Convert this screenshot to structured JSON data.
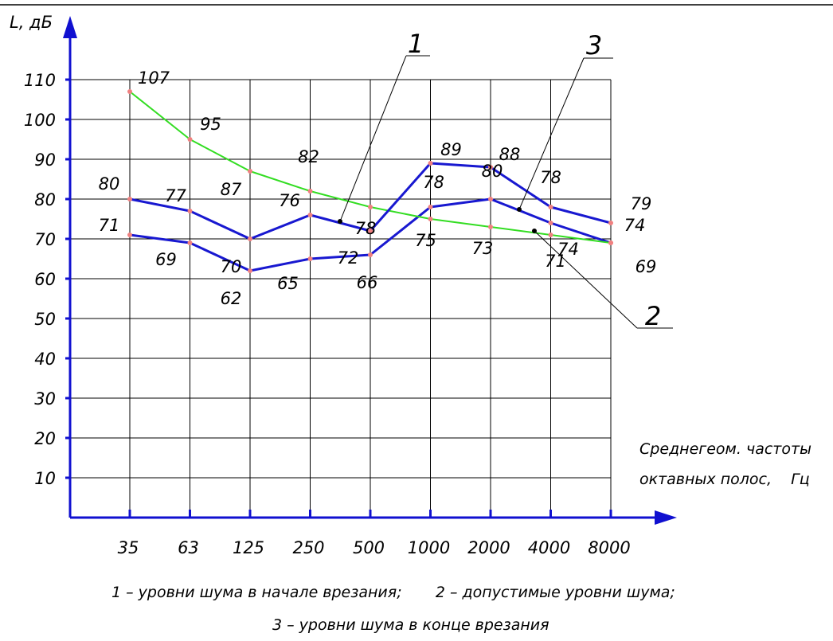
{
  "chart_data": {
    "type": "line",
    "ylabel": "L, дБ",
    "xlabel_lines": [
      "Среднегеом. частоты",
      "октавных полос,    Гц"
    ],
    "categories": [
      "35",
      "63",
      "125",
      "250",
      "500",
      "1000",
      "2000",
      "4000",
      "8000"
    ],
    "y_ticks": [
      10,
      20,
      30,
      40,
      50,
      60,
      70,
      80,
      90,
      100,
      110
    ],
    "ylim": [
      0,
      110
    ],
    "grid": true,
    "series": [
      {
        "name": "1",
        "values": [
          71,
          69,
          62,
          65,
          66,
          78,
          80,
          74,
          69
        ],
        "labels": [
          "71",
          "69",
          "62",
          "65",
          "66",
          "78",
          "80",
          "74",
          "69"
        ],
        "color": "#1818d0"
      },
      {
        "name": "2",
        "values": [
          107,
          95,
          87,
          82,
          78,
          75,
          73,
          71,
          69
        ],
        "labels": [
          "107",
          "95",
          "87",
          "82",
          "78",
          "75",
          "73",
          "71",
          ""
        ],
        "color": "#33dd22"
      },
      {
        "name": "3",
        "values": [
          80,
          77,
          70,
          76,
          72,
          89,
          88,
          78,
          74
        ],
        "labels": [
          "80",
          "77",
          "70",
          "76",
          "72",
          "89",
          "88",
          "78",
          "74"
        ],
        "color": "#1818d0"
      }
    ],
    "extra_labels": [
      "79"
    ],
    "callouts": [
      "1",
      "2",
      "3"
    ],
    "caption_lines": [
      "1 – уровни шума в начале врезания;       2 – допустимые уровни шума;",
      "3 – уровни шума в конце врезания"
    ]
  }
}
